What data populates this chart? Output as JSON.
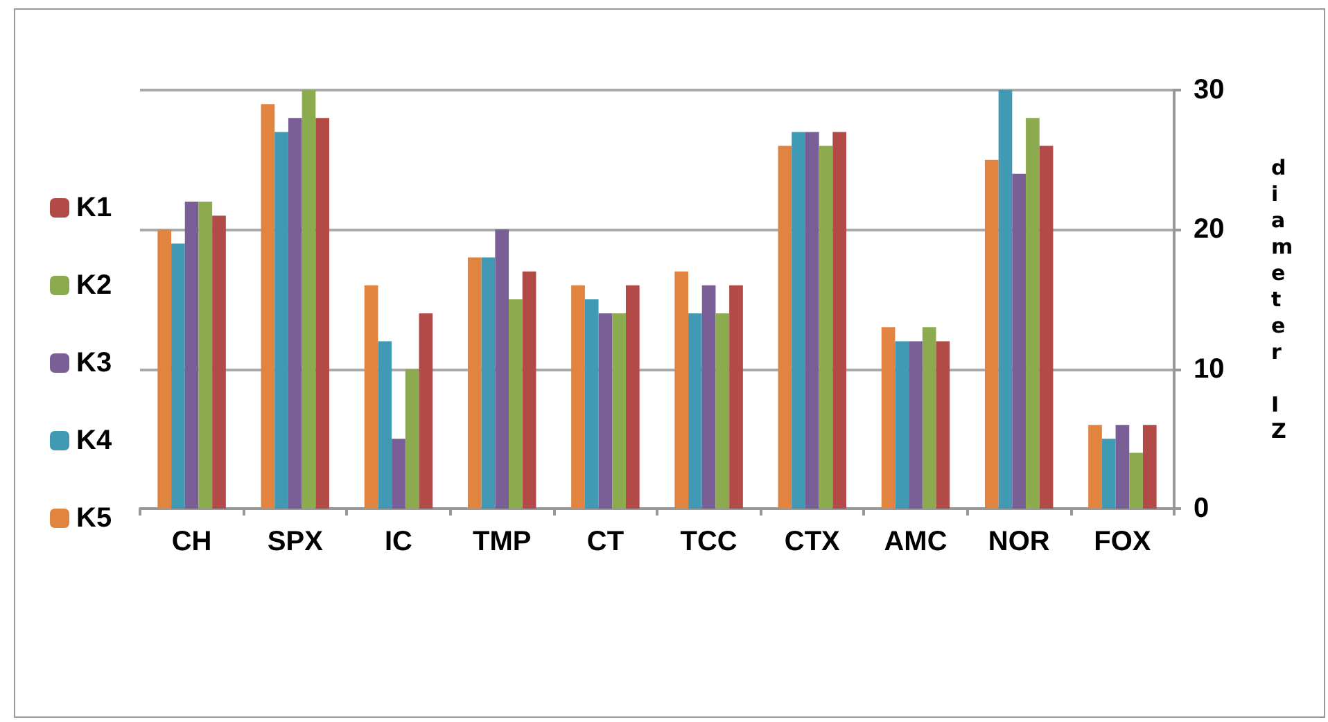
{
  "chart_data": {
    "type": "bar",
    "ylabel": "diameter IZ",
    "categories": [
      "CH",
      "SPX",
      "IC",
      "TMP",
      "CT",
      "TCC",
      "CTX",
      "AMC",
      "NOR",
      "FOX"
    ],
    "series": [
      {
        "name": "K5",
        "color": "#e0843f",
        "values": [
          20,
          29,
          16,
          18,
          16,
          17,
          26,
          13,
          25,
          6
        ]
      },
      {
        "name": "K4",
        "color": "#4299b3",
        "values": [
          19,
          27,
          12,
          18,
          15,
          14,
          27,
          12,
          30,
          5
        ]
      },
      {
        "name": "K3",
        "color": "#7a5e96",
        "values": [
          22,
          28,
          5,
          20,
          14,
          16,
          27,
          12,
          24,
          6
        ]
      },
      {
        "name": "K2",
        "color": "#8cab4f",
        "values": [
          22,
          30,
          10,
          15,
          14,
          14,
          26,
          13,
          28,
          4
        ]
      },
      {
        "name": "K1",
        "color": "#b24a48",
        "values": [
          21,
          28,
          14,
          17,
          16,
          16,
          27,
          12,
          26,
          6
        ]
      }
    ],
    "ylim": [
      0,
      30
    ],
    "yticks": [
      0,
      10,
      20,
      30
    ],
    "grid": "y",
    "legend": "left"
  }
}
